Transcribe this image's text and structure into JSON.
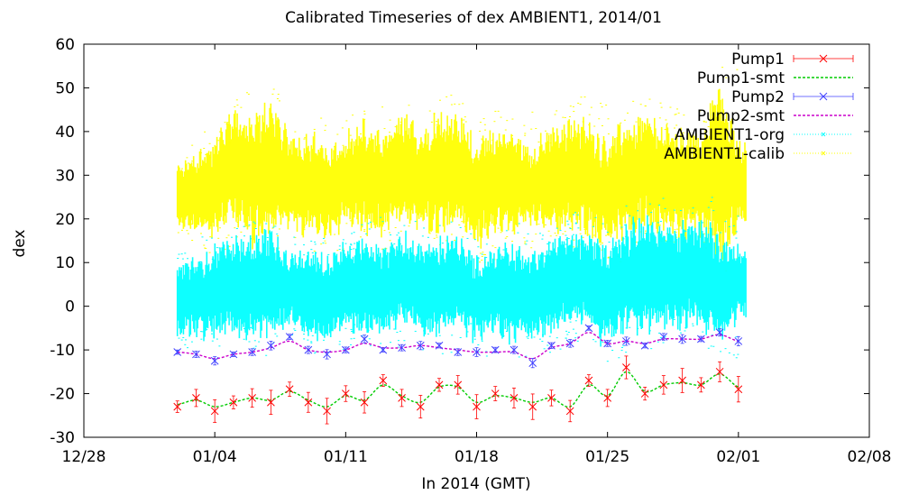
{
  "chart_data": {
    "type": "line",
    "title": "Calibrated Timeseries of dex AMBIENT1, 2014/01",
    "xlabel": "In 2014 (GMT)",
    "ylabel": "dex",
    "x_tick_labels": [
      "12/28",
      "01/04",
      "01/11",
      "01/18",
      "01/25",
      "02/01",
      "02/08"
    ],
    "xlim": [
      "2013-12-28",
      "2014-02-08"
    ],
    "ylim": [
      -30,
      60
    ],
    "y_ticks": [
      -30,
      -20,
      -10,
      0,
      10,
      20,
      30,
      40,
      50,
      60
    ],
    "legend_position": "top-right",
    "grid": false,
    "series": [
      {
        "name": "Pump1",
        "color": "#ff0000",
        "style": "points-errorbars",
        "x": [
          "2014-01-02",
          "2014-01-03",
          "2014-01-04",
          "2014-01-05",
          "2014-01-06",
          "2014-01-07",
          "2014-01-08",
          "2014-01-09",
          "2014-01-10",
          "2014-01-11",
          "2014-01-12",
          "2014-01-13",
          "2014-01-14",
          "2014-01-15",
          "2014-01-16",
          "2014-01-17",
          "2014-01-18",
          "2014-01-19",
          "2014-01-20",
          "2014-01-21",
          "2014-01-22",
          "2014-01-23",
          "2014-01-24",
          "2014-01-25",
          "2014-01-26",
          "2014-01-27",
          "2014-01-28",
          "2014-01-29",
          "2014-01-30",
          "2014-01-31",
          "2014-02-01"
        ],
        "y": [
          -23,
          -21,
          -24,
          -22,
          -21,
          -22,
          -19,
          -22,
          -24,
          -20,
          -22,
          -17,
          -21,
          -23,
          -18,
          -18,
          -23,
          -20,
          -21,
          -23,
          -21,
          -24,
          -17,
          -21,
          -14,
          -20,
          -18,
          -17,
          -18,
          -15,
          -19
        ]
      },
      {
        "name": "Pump1-smt",
        "color": "#00cc00",
        "style": "dashed-line",
        "x": [
          "2014-01-02",
          "2014-01-03",
          "2014-01-04",
          "2014-01-05",
          "2014-01-06",
          "2014-01-07",
          "2014-01-08",
          "2014-01-09",
          "2014-01-10",
          "2014-01-11",
          "2014-01-12",
          "2014-01-13",
          "2014-01-14",
          "2014-01-15",
          "2014-01-16",
          "2014-01-17",
          "2014-01-18",
          "2014-01-19",
          "2014-01-20",
          "2014-01-21",
          "2014-01-22",
          "2014-01-23",
          "2014-01-24",
          "2014-01-25",
          "2014-01-26",
          "2014-01-27",
          "2014-01-28",
          "2014-01-29",
          "2014-01-30",
          "2014-01-31",
          "2014-02-01"
        ],
        "y": [
          -22.5,
          -21.5,
          -23,
          -22,
          -21,
          -21.5,
          -19.5,
          -21.5,
          -23,
          -20.5,
          -21.5,
          -18,
          -20.5,
          -22,
          -18.5,
          -18.5,
          -22,
          -20.5,
          -21,
          -22,
          -21,
          -23,
          -18,
          -20.5,
          -15,
          -19.5,
          -18,
          -17.5,
          -18,
          -15.5,
          -18.5
        ]
      },
      {
        "name": "Pump2",
        "color": "#4040ff",
        "style": "points-errorbars",
        "x": [
          "2014-01-02",
          "2014-01-03",
          "2014-01-04",
          "2014-01-05",
          "2014-01-06",
          "2014-01-07",
          "2014-01-08",
          "2014-01-09",
          "2014-01-10",
          "2014-01-11",
          "2014-01-12",
          "2014-01-13",
          "2014-01-14",
          "2014-01-15",
          "2014-01-16",
          "2014-01-17",
          "2014-01-18",
          "2014-01-19",
          "2014-01-20",
          "2014-01-21",
          "2014-01-22",
          "2014-01-23",
          "2014-01-24",
          "2014-01-25",
          "2014-01-26",
          "2014-01-27",
          "2014-01-28",
          "2014-01-29",
          "2014-01-30",
          "2014-01-31",
          "2014-02-01"
        ],
        "y": [
          -10.5,
          -11,
          -12.5,
          -11,
          -10.5,
          -9,
          -7,
          -10,
          -11,
          -10,
          -7.5,
          -10,
          -9.5,
          -9,
          -9,
          -10.5,
          -10.5,
          -10,
          -10,
          -13,
          -9,
          -8.5,
          -5,
          -8.5,
          -8,
          -9,
          -7,
          -7.5,
          -7.5,
          -6,
          -8
        ]
      },
      {
        "name": "Pump2-smt",
        "color": "#cc00cc",
        "style": "dashed-line",
        "x": [
          "2014-01-02",
          "2014-01-03",
          "2014-01-04",
          "2014-01-05",
          "2014-01-06",
          "2014-01-07",
          "2014-01-08",
          "2014-01-09",
          "2014-01-10",
          "2014-01-11",
          "2014-01-12",
          "2014-01-13",
          "2014-01-14",
          "2014-01-15",
          "2014-01-16",
          "2014-01-17",
          "2014-01-18",
          "2014-01-19",
          "2014-01-20",
          "2014-01-21",
          "2014-01-22",
          "2014-01-23",
          "2014-01-24",
          "2014-01-25",
          "2014-01-26",
          "2014-01-27",
          "2014-01-28",
          "2014-01-29",
          "2014-01-30",
          "2014-01-31",
          "2014-02-01"
        ],
        "y": [
          -10.5,
          -11,
          -12,
          -11,
          -10.5,
          -9.5,
          -8,
          -10,
          -10.5,
          -10,
          -8.5,
          -9.5,
          -9.5,
          -9,
          -9.5,
          -10,
          -10.5,
          -10.5,
          -10.5,
          -12,
          -9.5,
          -8.5,
          -6,
          -8.5,
          -8,
          -8.5,
          -7.5,
          -7.5,
          -7.5,
          -6.5,
          -8
        ]
      },
      {
        "name": "AMBIENT1-org",
        "color": "#00ffff",
        "style": "dense-points",
        "x": [
          "2014-01-02",
          "2014-01-03",
          "2014-01-04",
          "2014-01-05",
          "2014-01-06",
          "2014-01-07",
          "2014-01-08",
          "2014-01-09",
          "2014-01-10",
          "2014-01-11",
          "2014-01-12",
          "2014-01-13",
          "2014-01-14",
          "2014-01-15",
          "2014-01-16",
          "2014-01-17",
          "2014-01-18",
          "2014-01-19",
          "2014-01-20",
          "2014-01-21",
          "2014-01-22",
          "2014-01-23",
          "2014-01-24",
          "2014-01-25",
          "2014-01-26",
          "2014-01-27",
          "2014-01-28",
          "2014-01-29",
          "2014-01-30",
          "2014-01-31",
          "2014-02-01"
        ],
        "y_min": [
          -7,
          -6,
          -8,
          -5,
          -8,
          -6,
          -4,
          -7,
          -8,
          -5,
          -6,
          -6,
          -4,
          -6,
          -7,
          -4,
          -8,
          -6,
          -8,
          -7,
          -6,
          -4,
          -5,
          -9,
          -5,
          -6,
          -4,
          -5,
          -6,
          -8,
          -3
        ],
        "y_max": [
          9,
          11,
          13,
          16,
          15,
          17,
          12,
          13,
          11,
          14,
          16,
          13,
          17,
          14,
          15,
          16,
          11,
          13,
          14,
          12,
          15,
          17,
          16,
          14,
          18,
          20,
          19,
          18,
          20,
          16,
          14
        ]
      },
      {
        "name": "AMBIENT1-calib",
        "color": "#ffff00",
        "style": "dense-points",
        "x": [
          "2014-01-02",
          "2014-01-03",
          "2014-01-04",
          "2014-01-05",
          "2014-01-06",
          "2014-01-07",
          "2014-01-08",
          "2014-01-09",
          "2014-01-10",
          "2014-01-11",
          "2014-01-12",
          "2014-01-13",
          "2014-01-14",
          "2014-01-15",
          "2014-01-16",
          "2014-01-17",
          "2014-01-18",
          "2014-01-19",
          "2014-01-20",
          "2014-01-21",
          "2014-01-22",
          "2014-01-23",
          "2014-01-24",
          "2014-01-25",
          "2014-01-26",
          "2014-01-27",
          "2014-01-28",
          "2014-01-29",
          "2014-01-30",
          "2014-01-31",
          "2014-02-01"
        ],
        "y_min": [
          18,
          16,
          17,
          19,
          14,
          17,
          18,
          16,
          16,
          19,
          17,
          17,
          19,
          18,
          16,
          19,
          14,
          17,
          17,
          19,
          18,
          17,
          16,
          14,
          17,
          18,
          18,
          16,
          17,
          10,
          18
        ],
        "y_max": [
          32,
          35,
          38,
          45,
          42,
          48,
          38,
          40,
          36,
          39,
          42,
          38,
          44,
          40,
          45,
          43,
          38,
          40,
          40,
          36,
          41,
          43,
          42,
          38,
          42,
          44,
          41,
          40,
          40,
          52,
          38
        ]
      }
    ]
  }
}
